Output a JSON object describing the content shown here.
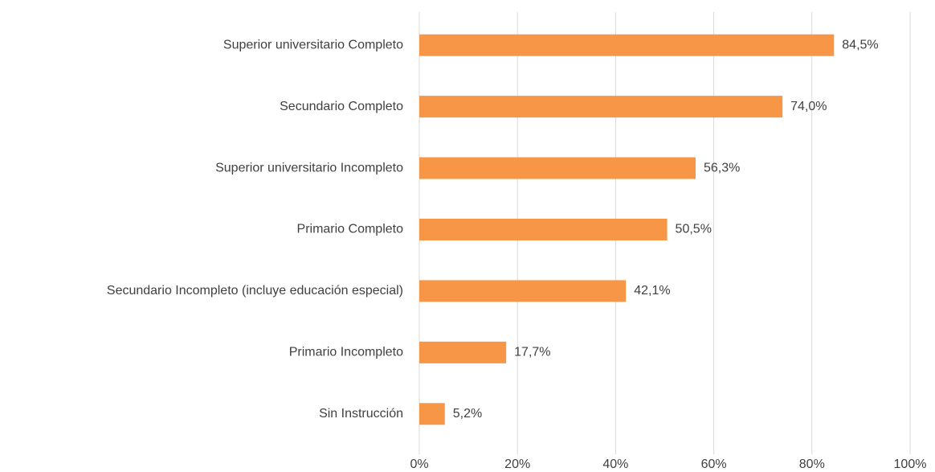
{
  "chart_data": {
    "type": "barh",
    "categories": [
      "Superior universitario Completo",
      "Secundario Completo",
      "Superior universitario Incompleto",
      "Primario Completo",
      "Secundario Incompleto (incluye educación especial)",
      "Primario Incompleto",
      "Sin Instrucción"
    ],
    "values": [
      84.5,
      74.0,
      56.3,
      50.5,
      42.1,
      17.7,
      5.2
    ],
    "value_labels": [
      "84,5%",
      "74,0%",
      "56,3%",
      "50,5%",
      "42,1%",
      "17,7%",
      "5,2%"
    ],
    "color": "#f79646",
    "xlim": [
      0,
      100
    ],
    "xticks": [
      {
        "value": 0,
        "label": "0%"
      },
      {
        "value": 20,
        "label": "20%"
      },
      {
        "value": 40,
        "label": "40%"
      },
      {
        "value": 60,
        "label": "60%"
      },
      {
        "value": 80,
        "label": "80%"
      },
      {
        "value": 100,
        "label": "100%"
      }
    ],
    "grid": true
  }
}
